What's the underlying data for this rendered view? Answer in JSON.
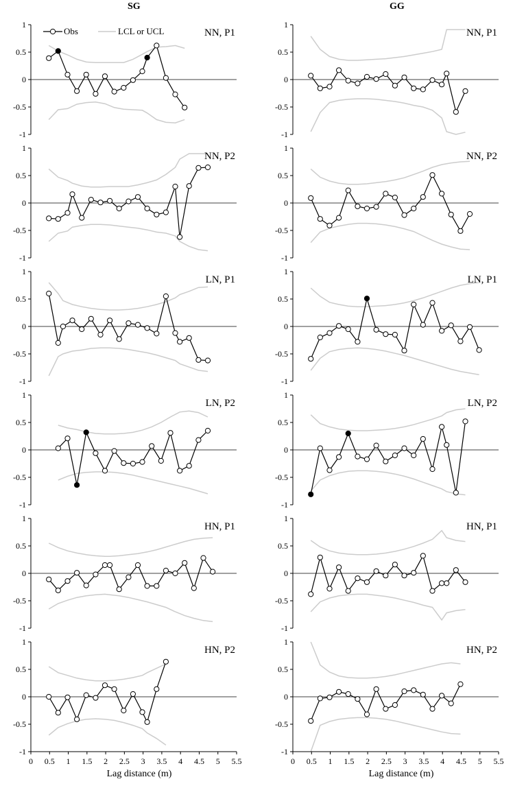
{
  "chart_data": {
    "type": "line",
    "xlabel": "Lag distance (m)",
    "column_titles": [
      "SG",
      "GG"
    ],
    "legend": {
      "obs": "Obs",
      "limits": "LCL or UCL",
      "placement": "top-left"
    },
    "xlim": [
      0,
      5.5
    ],
    "ylim": [
      -1,
      1
    ],
    "x_ticks": [
      "0",
      "0.5",
      "1",
      "1.5",
      "2",
      "2.5",
      "3",
      "3.5",
      "4",
      "4.5",
      "5",
      "5.5"
    ],
    "y_ticks": [
      "1",
      "0.5",
      "0",
      "-0.5",
      "-1"
    ],
    "colors": {
      "obs_line": "#000000",
      "limits_line": "#cccccc",
      "significant_point": "#000000"
    },
    "panels": [
      {
        "column": "SG",
        "label": "NN, P1",
        "x": [
          0.48,
          0.73,
          0.98,
          1.23,
          1.48,
          1.73,
          1.98,
          2.23,
          2.48,
          2.73,
          2.98,
          3.11,
          3.36,
          3.61,
          3.86,
          4.11
        ],
        "obs": [
          0.39,
          0.52,
          0.09,
          -0.21,
          0.09,
          -0.26,
          0.06,
          -0.22,
          -0.15,
          -0.01,
          0.15,
          0.4,
          0.62,
          0.03,
          -0.27,
          -0.51
        ],
        "significant": [
          1,
          11
        ],
        "ucl": [
          0.62,
          0.52,
          0.45,
          0.37,
          0.32,
          0.31,
          0.31,
          0.31,
          0.31,
          0.37,
          0.46,
          0.51,
          0.59,
          0.6,
          0.62,
          0.57
        ],
        "lcl": [
          -0.73,
          -0.55,
          -0.53,
          -0.45,
          -0.42,
          -0.41,
          -0.44,
          -0.51,
          -0.54,
          -0.55,
          -0.56,
          -0.61,
          -0.73,
          -0.78,
          -0.79,
          -0.73
        ]
      },
      {
        "column": "GG",
        "label": "NN, P1",
        "x": [
          0.48,
          0.73,
          0.98,
          1.23,
          1.48,
          1.73,
          1.98,
          2.23,
          2.48,
          2.73,
          2.98,
          3.23,
          3.48,
          3.73,
          3.98,
          4.11,
          4.36,
          4.61
        ],
        "obs": [
          0.07,
          -0.16,
          -0.13,
          0.17,
          -0.02,
          -0.07,
          0.05,
          0.01,
          0.1,
          -0.11,
          0.04,
          -0.16,
          -0.18,
          -0.01,
          -0.09,
          0.11,
          -0.59,
          -0.21
        ],
        "significant": [],
        "ucl": [
          0.79,
          0.55,
          0.42,
          0.37,
          0.35,
          0.35,
          0.36,
          0.37,
          0.38,
          0.4,
          0.42,
          0.45,
          0.48,
          0.51,
          0.55,
          0.91,
          0.91,
          0.91
        ],
        "lcl": [
          -0.95,
          -0.6,
          -0.42,
          -0.38,
          -0.36,
          -0.35,
          -0.35,
          -0.36,
          -0.38,
          -0.4,
          -0.43,
          -0.47,
          -0.5,
          -0.56,
          -0.7,
          -0.95,
          -1.0,
          -0.96
        ]
      },
      {
        "column": "SG",
        "label": "NN, P2",
        "x": [
          0.48,
          0.73,
          0.98,
          1.11,
          1.36,
          1.61,
          1.86,
          2.11,
          2.36,
          2.61,
          2.86,
          3.11,
          3.36,
          3.61,
          3.86,
          3.98,
          4.23,
          4.48,
          4.73
        ],
        "obs": [
          -0.28,
          -0.29,
          -0.18,
          0.16,
          -0.27,
          0.06,
          0.01,
          0.04,
          -0.1,
          0.03,
          0.11,
          -0.1,
          -0.21,
          -0.17,
          0.3,
          -0.62,
          0.31,
          0.64,
          0.65
        ],
        "significant": [],
        "ucl": [
          0.62,
          0.47,
          0.41,
          0.36,
          0.31,
          0.29,
          0.29,
          0.3,
          0.3,
          0.3,
          0.33,
          0.37,
          0.42,
          0.52,
          0.65,
          0.8,
          0.9,
          0.9,
          0.9
        ],
        "lcl": [
          -0.7,
          -0.55,
          -0.51,
          -0.44,
          -0.41,
          -0.39,
          -0.39,
          -0.4,
          -0.42,
          -0.44,
          -0.46,
          -0.49,
          -0.53,
          -0.55,
          -0.6,
          -0.7,
          -0.79,
          -0.85,
          -0.87
        ]
      },
      {
        "column": "GG",
        "label": "NN, P2",
        "x": [
          0.48,
          0.73,
          0.98,
          1.23,
          1.48,
          1.73,
          1.98,
          2.23,
          2.48,
          2.73,
          2.98,
          3.23,
          3.48,
          3.73,
          3.98,
          4.23,
          4.48,
          4.73
        ],
        "obs": [
          0.09,
          -0.29,
          -0.41,
          -0.27,
          0.23,
          -0.06,
          -0.1,
          -0.07,
          0.17,
          0.1,
          -0.22,
          -0.1,
          0.11,
          0.51,
          0.17,
          -0.21,
          -0.51,
          -0.2
        ],
        "significant": [],
        "ucl": [
          0.62,
          0.47,
          0.4,
          0.36,
          0.34,
          0.34,
          0.35,
          0.37,
          0.39,
          0.42,
          0.46,
          0.52,
          0.58,
          0.65,
          0.7,
          0.73,
          0.75,
          0.76
        ],
        "lcl": [
          -0.72,
          -0.53,
          -0.46,
          -0.42,
          -0.39,
          -0.37,
          -0.37,
          -0.38,
          -0.4,
          -0.43,
          -0.47,
          -0.52,
          -0.6,
          -0.68,
          -0.75,
          -0.8,
          -0.84,
          -0.85
        ]
      },
      {
        "column": "SG",
        "label": "LN, P1",
        "x": [
          0.48,
          0.73,
          0.86,
          1.11,
          1.36,
          1.61,
          1.86,
          2.11,
          2.36,
          2.61,
          2.86,
          3.11,
          3.36,
          3.61,
          3.86,
          3.98,
          4.23,
          4.48,
          4.73
        ],
        "obs": [
          0.6,
          -0.3,
          0.0,
          0.11,
          -0.05,
          0.14,
          -0.15,
          0.11,
          -0.23,
          0.06,
          0.03,
          -0.03,
          -0.13,
          0.55,
          -0.12,
          -0.28,
          -0.21,
          -0.61,
          -0.62
        ],
        "significant": [],
        "ucl": [
          0.8,
          0.6,
          0.47,
          0.4,
          0.36,
          0.33,
          0.31,
          0.3,
          0.3,
          0.31,
          0.33,
          0.36,
          0.4,
          0.45,
          0.52,
          0.58,
          0.64,
          0.71,
          0.72
        ],
        "lcl": [
          -0.9,
          -0.55,
          -0.5,
          -0.45,
          -0.43,
          -0.4,
          -0.39,
          -0.39,
          -0.4,
          -0.42,
          -0.45,
          -0.48,
          -0.52,
          -0.57,
          -0.62,
          -0.68,
          -0.74,
          -0.8,
          -0.82
        ]
      },
      {
        "column": "GG",
        "label": "LN, P1",
        "x": [
          0.48,
          0.73,
          0.98,
          1.23,
          1.48,
          1.73,
          1.98,
          2.23,
          2.48,
          2.73,
          2.98,
          3.23,
          3.48,
          3.73,
          3.98,
          4.23,
          4.48,
          4.73,
          4.98
        ],
        "obs": [
          -0.59,
          -0.2,
          -0.12,
          0.01,
          -0.05,
          -0.28,
          0.51,
          -0.06,
          -0.14,
          -0.15,
          -0.44,
          0.4,
          0.03,
          0.43,
          -0.08,
          0.02,
          -0.27,
          -0.01,
          -0.43
        ],
        "significant": [
          6
        ],
        "ucl": [
          0.7,
          0.55,
          0.44,
          0.4,
          0.37,
          0.36,
          0.36,
          0.37,
          0.38,
          0.4,
          0.43,
          0.47,
          0.52,
          0.58,
          0.64,
          0.7,
          0.75,
          0.78,
          0.8
        ],
        "lcl": [
          -0.8,
          -0.58,
          -0.46,
          -0.42,
          -0.4,
          -0.39,
          -0.4,
          -0.42,
          -0.45,
          -0.49,
          -0.53,
          -0.58,
          -0.63,
          -0.68,
          -0.73,
          -0.78,
          -0.82,
          -0.85,
          -0.88
        ]
      },
      {
        "column": "SG",
        "label": "LN, P2",
        "x": [
          0.73,
          0.98,
          1.23,
          1.48,
          1.73,
          1.98,
          2.23,
          2.48,
          2.73,
          2.98,
          3.23,
          3.48,
          3.73,
          3.98,
          4.23,
          4.48,
          4.73
        ],
        "obs": [
          0.03,
          0.21,
          -0.64,
          0.32,
          -0.06,
          -0.38,
          -0.02,
          -0.24,
          -0.25,
          -0.22,
          0.07,
          -0.2,
          0.31,
          -0.38,
          -0.29,
          0.18,
          0.35
        ],
        "significant": [
          2,
          3
        ],
        "ucl": [
          0.45,
          0.4,
          0.37,
          0.33,
          0.3,
          0.29,
          0.29,
          0.3,
          0.32,
          0.36,
          0.42,
          0.5,
          0.6,
          0.69,
          0.71,
          0.68,
          0.6
        ],
        "lcl": [
          -0.55,
          -0.48,
          -0.43,
          -0.41,
          -0.4,
          -0.4,
          -0.41,
          -0.43,
          -0.46,
          -0.5,
          -0.54,
          -0.58,
          -0.62,
          -0.66,
          -0.7,
          -0.75,
          -0.8
        ]
      },
      {
        "column": "GG",
        "label": "LN, P2",
        "x": [
          0.48,
          0.73,
          0.98,
          1.23,
          1.48,
          1.73,
          1.98,
          2.23,
          2.48,
          2.73,
          2.98,
          3.23,
          3.48,
          3.73,
          3.98,
          4.11,
          4.36,
          4.61
        ],
        "obs": [
          -0.81,
          0.03,
          -0.37,
          -0.13,
          0.3,
          -0.12,
          -0.17,
          0.08,
          -0.21,
          -0.1,
          0.03,
          -0.1,
          0.2,
          -0.35,
          0.42,
          0.09,
          -0.78,
          0.52
        ],
        "significant": [
          0,
          4
        ],
        "ucl": [
          0.64,
          0.48,
          0.42,
          0.38,
          0.36,
          0.35,
          0.35,
          0.36,
          0.37,
          0.39,
          0.42,
          0.46,
          0.51,
          0.56,
          0.62,
          0.68,
          0.73,
          0.75
        ],
        "lcl": [
          -0.75,
          -0.55,
          -0.47,
          -0.42,
          -0.39,
          -0.38,
          -0.38,
          -0.39,
          -0.41,
          -0.44,
          -0.48,
          -0.53,
          -0.59,
          -0.65,
          -0.71,
          -0.76,
          -0.8,
          -0.82
        ]
      },
      {
        "column": "SG",
        "label": "HN, P1",
        "x": [
          0.48,
          0.73,
          0.98,
          1.23,
          1.48,
          1.73,
          1.98,
          2.11,
          2.36,
          2.61,
          2.86,
          3.11,
          3.36,
          3.61,
          3.86,
          4.11,
          4.36,
          4.61,
          4.86
        ],
        "obs": [
          -0.11,
          -0.31,
          -0.14,
          0.01,
          -0.22,
          -0.02,
          0.15,
          0.15,
          -0.29,
          -0.07,
          0.15,
          -0.23,
          -0.23,
          0.05,
          0.0,
          0.19,
          -0.27,
          0.28,
          0.03
        ],
        "significant": [],
        "ucl": [
          0.55,
          0.47,
          0.41,
          0.37,
          0.34,
          0.32,
          0.31,
          0.31,
          0.32,
          0.34,
          0.36,
          0.39,
          0.43,
          0.48,
          0.53,
          0.58,
          0.62,
          0.64,
          0.65
        ],
        "lcl": [
          -0.65,
          -0.55,
          -0.49,
          -0.44,
          -0.41,
          -0.39,
          -0.38,
          -0.39,
          -0.41,
          -0.44,
          -0.48,
          -0.52,
          -0.57,
          -0.62,
          -0.7,
          -0.77,
          -0.82,
          -0.86,
          -0.88
        ]
      },
      {
        "column": "GG",
        "label": "HN, P1",
        "x": [
          0.48,
          0.73,
          0.98,
          1.23,
          1.48,
          1.73,
          1.98,
          2.23,
          2.48,
          2.73,
          2.98,
          3.23,
          3.48,
          3.73,
          3.98,
          4.11,
          4.36,
          4.61
        ],
        "obs": [
          -0.38,
          0.29,
          -0.28,
          0.11,
          -0.32,
          -0.09,
          -0.16,
          0.04,
          -0.04,
          0.16,
          -0.04,
          0.01,
          0.32,
          -0.32,
          -0.18,
          -0.18,
          0.06,
          -0.16
        ],
        "significant": [],
        "ucl": [
          0.6,
          0.48,
          0.41,
          0.37,
          0.35,
          0.34,
          0.34,
          0.35,
          0.37,
          0.4,
          0.44,
          0.49,
          0.55,
          0.62,
          0.78,
          0.65,
          0.6,
          0.58
        ],
        "lcl": [
          -0.7,
          -0.52,
          -0.45,
          -0.41,
          -0.39,
          -0.38,
          -0.38,
          -0.4,
          -0.42,
          -0.45,
          -0.49,
          -0.53,
          -0.58,
          -0.62,
          -0.85,
          -0.72,
          -0.68,
          -0.66
        ]
      },
      {
        "column": "SG",
        "label": "HN, P2",
        "x": [
          0.48,
          0.73,
          0.98,
          1.23,
          1.48,
          1.73,
          1.98,
          2.23,
          2.48,
          2.73,
          2.98,
          3.11,
          3.36,
          3.61
        ],
        "obs": [
          0.0,
          -0.29,
          -0.01,
          -0.41,
          0.03,
          -0.02,
          0.21,
          0.14,
          -0.25,
          0.05,
          -0.28,
          -0.46,
          0.14,
          0.64
        ],
        "significant": [],
        "ucl": [
          0.55,
          0.44,
          0.39,
          0.34,
          0.31,
          0.29,
          0.29,
          0.3,
          0.32,
          0.35,
          0.39,
          0.44,
          0.52,
          0.6
        ],
        "lcl": [
          -0.7,
          -0.56,
          -0.49,
          -0.44,
          -0.41,
          -0.4,
          -0.41,
          -0.43,
          -0.47,
          -0.52,
          -0.58,
          -0.66,
          -0.76,
          -0.88
        ]
      },
      {
        "column": "GG",
        "label": "HN, P2",
        "x": [
          0.48,
          0.73,
          0.98,
          1.23,
          1.48,
          1.73,
          1.98,
          2.23,
          2.48,
          2.73,
          2.98,
          3.23,
          3.48,
          3.73,
          3.98,
          4.23,
          4.48
        ],
        "obs": [
          -0.44,
          -0.03,
          -0.01,
          0.09,
          0.05,
          -0.04,
          -0.32,
          0.14,
          -0.22,
          -0.15,
          0.1,
          0.12,
          0.04,
          -0.22,
          0.02,
          -0.12,
          0.23
        ],
        "significant": [],
        "ucl": [
          1.0,
          0.58,
          0.45,
          0.38,
          0.35,
          0.34,
          0.34,
          0.35,
          0.37,
          0.4,
          0.44,
          0.48,
          0.52,
          0.56,
          0.6,
          0.62,
          0.6
        ],
        "lcl": [
          -1.0,
          -0.52,
          -0.45,
          -0.41,
          -0.39,
          -0.38,
          -0.38,
          -0.39,
          -0.41,
          -0.44,
          -0.48,
          -0.52,
          -0.56,
          -0.6,
          -0.64,
          -0.67,
          -0.68
        ]
      }
    ]
  }
}
